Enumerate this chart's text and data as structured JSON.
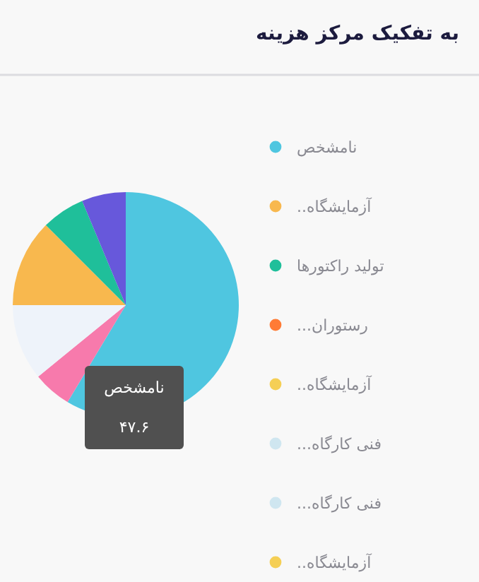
{
  "chart_data": {
    "type": "pie",
    "title": "به تفکیک مرکز هزینه",
    "categories": [
      "نامشخص",
      null,
      null,
      "آزمایشگاه..",
      "تولید راکتورها",
      null,
      "رستوران...",
      "آزمایشگاه..",
      "فنی کارگاه...",
      "فنی کارگاه...",
      "آزمایشگاه.."
    ],
    "values": [
      47.6,
      4.47,
      8.85,
      10.15,
      5.03,
      5.12,
      null,
      null,
      null,
      null,
      null
    ],
    "colors": [
      "#4fc6e0",
      "#f77aac",
      "#eef3fa",
      "#f8b84e",
      "#1fbf9a",
      "#6758db",
      "#ff7b35",
      "#f5cf55",
      "#cfe6f0",
      "#cfe6f0",
      "#f5cf55"
    ],
    "value_labels": [
      "۴۷.۶",
      null,
      null,
      null,
      null,
      null,
      null,
      null,
      null,
      null,
      null
    ],
    "legend": "right"
  }
}
